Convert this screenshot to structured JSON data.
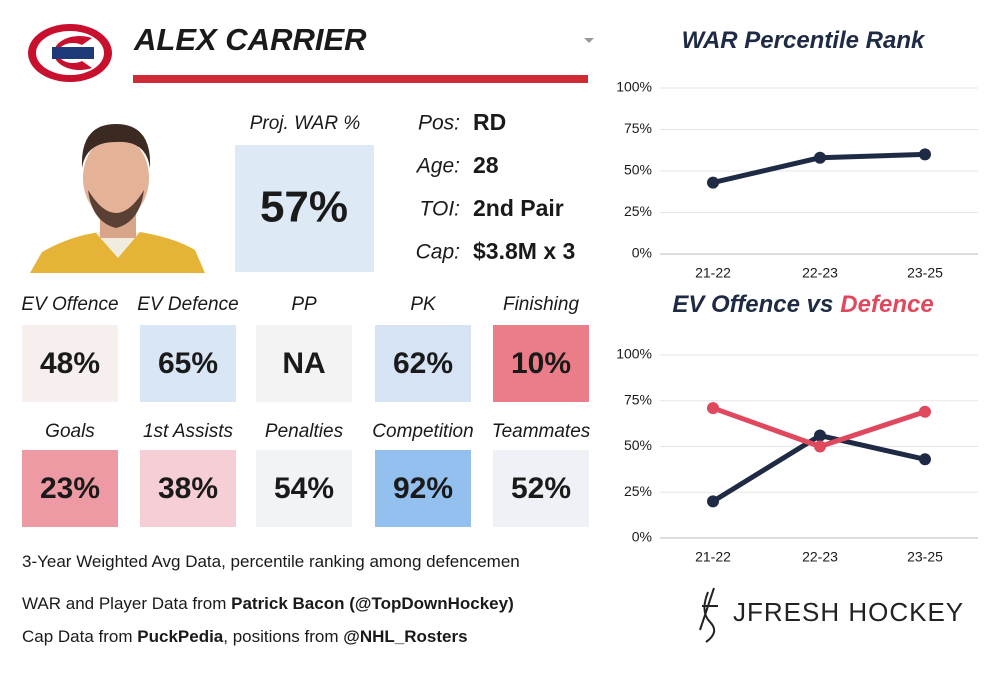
{
  "header": {
    "name": "ALEX CARRIER"
  },
  "projection": {
    "label": "Proj. WAR %",
    "value": "57%",
    "color": "#dde9f5"
  },
  "info": [
    {
      "label": "Pos:",
      "value": "RD"
    },
    {
      "label": "Age:",
      "value": "28"
    },
    {
      "label": "TOI:",
      "value": "2nd Pair"
    },
    {
      "label": "Cap:",
      "value": "$3.8M x 3"
    }
  ],
  "tiles": [
    [
      {
        "label": "EV Offence",
        "value": "48%",
        "color": "#f7eeee"
      },
      {
        "label": "EV Defence",
        "value": "65%",
        "color": "#d9e6f5"
      },
      {
        "label": "PP",
        "value": "NA",
        "color": "#f3f3f4"
      },
      {
        "label": "PK",
        "value": "62%",
        "color": "#d5e3f4"
      },
      {
        "label": "Finishing",
        "value": "10%",
        "color": "#eb7d88"
      }
    ],
    [
      {
        "label": "Goals",
        "value": "23%",
        "color": "#ee9aa4"
      },
      {
        "label": "1st Assists",
        "value": "38%",
        "color": "#f5cfd5"
      },
      {
        "label": "Penalties",
        "value": "54%",
        "color": "#f1f3f6"
      },
      {
        "label": "Competition",
        "value": "92%",
        "color": "#93c0ef"
      },
      {
        "label": "Teammates",
        "value": "52%",
        "color": "#eef2f7"
      }
    ]
  ],
  "footer": [
    [
      {
        "text": "3-Year Weighted Avg Data, percentile ranking among defencemen",
        "bold": false
      }
    ],
    [
      {
        "text": "WAR and Player Data from ",
        "bold": false
      },
      {
        "text": "Patrick Bacon (@TopDownHockey)",
        "bold": true
      }
    ],
    [
      {
        "text": "Cap Data from ",
        "bold": false
      },
      {
        "text": "PuckPedia",
        "bold": true
      },
      {
        "text": ", positions from ",
        "bold": false
      },
      {
        "text": "@NHL_Rosters",
        "bold": true
      }
    ]
  ],
  "brand": "JFRESH HOCKEY",
  "chart_data": [
    {
      "type": "line",
      "title": [
        "WAR Percentile Rank"
      ],
      "title_colors": [
        "#1f2a44"
      ],
      "categories": [
        "21-22",
        "22-23",
        "23-25"
      ],
      "series": [
        {
          "color": "#1f2a44",
          "values": [
            43,
            58,
            60
          ]
        }
      ],
      "ylim": [
        0,
        100
      ],
      "yticks": [
        {
          "value": 0,
          "label": "0%"
        },
        {
          "value": 25,
          "label": "25%"
        },
        {
          "value": 50,
          "label": "50%"
        },
        {
          "value": 75,
          "label": "75%"
        },
        {
          "value": 100,
          "label": "100%"
        }
      ],
      "grid": true
    },
    {
      "type": "line",
      "title": [
        "EV Offence vs",
        "Defence"
      ],
      "title_colors": [
        "#1f2a44",
        "#e0485e"
      ],
      "categories": [
        "21-22",
        "22-23",
        "23-25"
      ],
      "series": [
        {
          "color": "#1f2a44",
          "values": [
            20,
            56,
            43
          ]
        },
        {
          "color": "#e0485e",
          "values": [
            71,
            50,
            69
          ]
        }
      ],
      "ylim": [
        0,
        100
      ],
      "yticks": [
        {
          "value": 0,
          "label": "0%"
        },
        {
          "value": 25,
          "label": "25%"
        },
        {
          "value": 50,
          "label": "50%"
        },
        {
          "value": 75,
          "label": "75%"
        },
        {
          "value": 100,
          "label": "100%"
        }
      ],
      "grid": true
    }
  ]
}
